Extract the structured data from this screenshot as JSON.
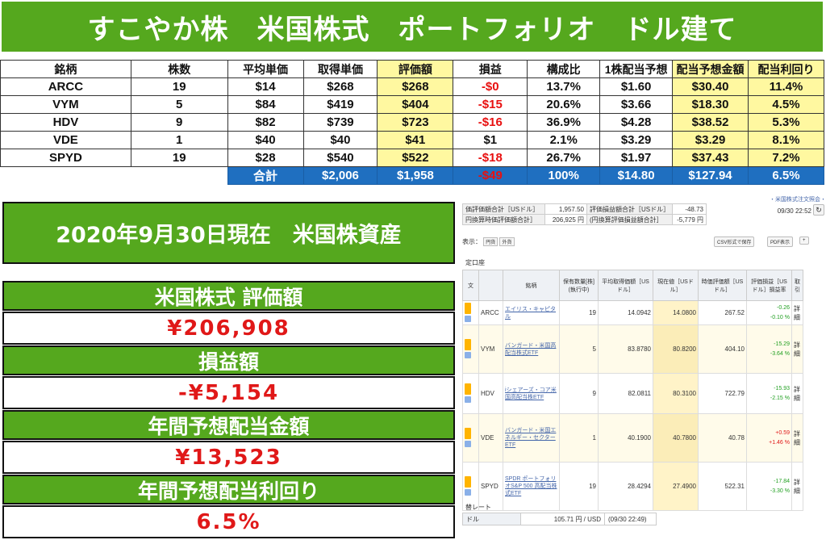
{
  "title": "すこやか株　米国株式　ポートフォリオ　ドル建て",
  "table": {
    "headers": [
      "銘柄",
      "株数",
      "平均単価",
      "取得単価",
      "評価額",
      "損益",
      "構成比",
      "1株配当予想",
      "配当予想金額",
      "配当利回り"
    ],
    "rows": [
      [
        "ARCC",
        "19",
        "$14",
        "$268",
        "$268",
        "-$0",
        "13.7%",
        "$1.60",
        "$30.40",
        "11.4%"
      ],
      [
        "VYM",
        "5",
        "$84",
        "$419",
        "$404",
        "-$15",
        "20.6%",
        "$3.66",
        "$18.30",
        "4.5%"
      ],
      [
        "HDV",
        "9",
        "$82",
        "$739",
        "$723",
        "-$16",
        "36.9%",
        "$4.28",
        "$38.52",
        "5.3%"
      ],
      [
        "VDE",
        "1",
        "$40",
        "$40",
        "$41",
        "$1",
        "2.1%",
        "$3.29",
        "$3.29",
        "8.1%"
      ],
      [
        "SPYD",
        "19",
        "$28",
        "$540",
        "$522",
        "-$18",
        "26.7%",
        "$1.97",
        "$37.43",
        "7.2%"
      ]
    ],
    "total": {
      "label": "合計",
      "cost": "$2,006",
      "value": "$1,958",
      "gain": "-$49",
      "ratio": "100%",
      "div_per_share": "$14.80",
      "div_amount": "$127.94",
      "yield": "6.5%"
    },
    "colors": {
      "header_bg": "#ffffff",
      "highlight": "#fff8a0",
      "negative": "#e81010",
      "total_bg": "#1f6fc0"
    }
  },
  "summary": {
    "date": "2020年9月30日現在　米国株資産",
    "items": [
      {
        "label": "米国株式 評価額",
        "value": "¥206,908"
      },
      {
        "label": "損益額",
        "value": "-¥5,154"
      },
      {
        "label": "年間予想配当金額",
        "value": "¥13,523"
      },
      {
        "label": "年間予想配当利回り",
        "value": "6.5%"
      }
    ],
    "colors": {
      "head_bg": "#55a81e",
      "value_text": "#e01818"
    }
  },
  "broker": {
    "link": "・米国株式注文照会・",
    "summary_rows": [
      {
        "label1": "価評価額合計［USドル］",
        "val1": "1,957.50",
        "label2": "評価損益額合計［USドル］",
        "val2": "-48.73"
      },
      {
        "label1": "円換算時価評価額合計］",
        "val1": "206,925 円",
        "label2": "(円換算評価損益額合計］",
        "val2": "-5,779 円"
      }
    ],
    "timestamp": "09/30 22:52",
    "refresh_icon": "↻",
    "display_label": "表示：",
    "toggle_yen": "円貨",
    "toggle_foreign": "外貨",
    "csv_button": "CSV形式で保存",
    "pdf_button": "PDF表示",
    "account_label": "定口座",
    "columns": [
      "文",
      "銘柄",
      "保有数量[株](執行中)",
      "平均取得価額［USドル］",
      "現在値［USドル］",
      "時価評価額［USドル］",
      "評価損益［USドル］損益率",
      "取引"
    ],
    "positions": [
      {
        "ticker": "ARCC",
        "name": "エイリス・キャピタル",
        "qty": "19",
        "avg": "14.0942",
        "now": "14.0800",
        "value": "267.52",
        "gain": "-0.26",
        "pct": "-0.10 %",
        "sign": "neg",
        "detail": "詳細"
      },
      {
        "ticker": "VYM",
        "name": "バンガード・米国高配当株式ETF",
        "qty": "5",
        "avg": "83.8780",
        "now": "80.8200",
        "value": "404.10",
        "gain": "-15.29",
        "pct": "-3.64 %",
        "sign": "neg",
        "detail": "詳細"
      },
      {
        "ticker": "HDV",
        "name": "iシェアーズ・コア米国高配当株ETF",
        "qty": "9",
        "avg": "82.0811",
        "now": "80.3100",
        "value": "722.79",
        "gain": "-15.93",
        "pct": "-2.15 %",
        "sign": "neg",
        "detail": "詳細"
      },
      {
        "ticker": "VDE",
        "name": "バンガード・米国エネルギー・セクターETF",
        "qty": "1",
        "avg": "40.1900",
        "now": "40.7800",
        "value": "40.78",
        "gain": "+0.59",
        "pct": "+1.46 %",
        "sign": "pos",
        "detail": "詳細"
      },
      {
        "ticker": "SPYD",
        "name": "SPDR ポートフォリオS&P 500 高配当株式ETF",
        "qty": "19",
        "avg": "28.4294",
        "now": "27.4900",
        "value": "522.31",
        "gain": "-17.84",
        "pct": "-3.30 %",
        "sign": "neg",
        "detail": "詳細"
      }
    ],
    "fx_title": "替レート",
    "fx_currency": "ドル",
    "fx_value": "105.71 円 / USD",
    "fx_time": "(09/30 22:49)"
  }
}
